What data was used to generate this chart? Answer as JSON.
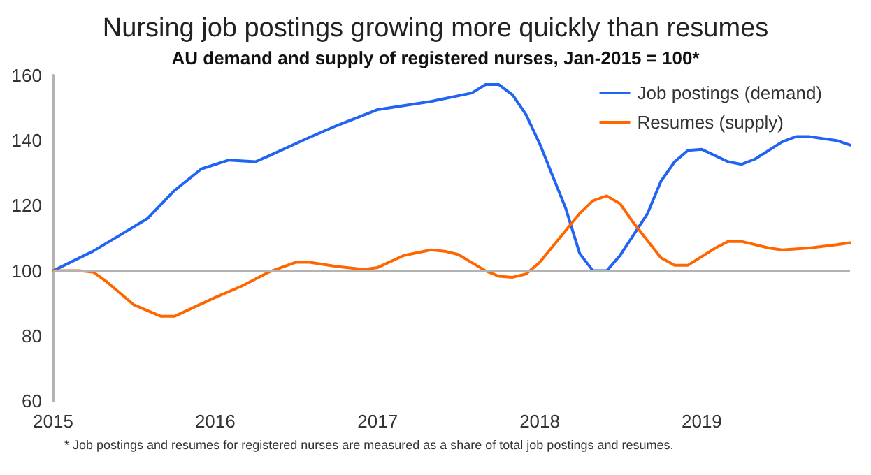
{
  "chart_data": {
    "type": "line",
    "title": "Nursing job postings growing more quickly than resumes",
    "subtitle": "AU demand and supply of registered nurses, Jan-2015 = 100*",
    "annotations": [
      "* Job postings and resumes for registered nurses are measured as a share of total job postings and resumes."
    ],
    "series": [
      {
        "name": "Job postings (demand)",
        "color": "#2164f3",
        "x": [
          "2015-01",
          "2015-04",
          "2015-06",
          "2015-08",
          "2015-10",
          "2015-12",
          "2016-02",
          "2016-04",
          "2016-05",
          "2016-08",
          "2016-10",
          "2017-01",
          "2017-05",
          "2017-08",
          "2017-09",
          "2017-10",
          "2017-11",
          "2017-12",
          "2018-01",
          "2018-03",
          "2018-04",
          "2018-05",
          "2018-06",
          "2018-07",
          "2018-09",
          "2018-10",
          "2018-11",
          "2018-12",
          "2019-01",
          "2019-03",
          "2019-04",
          "2019-05",
          "2019-07",
          "2019-08",
          "2019-09",
          "2019-11",
          "2019-12"
        ],
        "values": [
          100,
          106,
          111,
          116,
          124.6,
          131.3,
          134,
          133.5,
          135.3,
          141,
          144.6,
          149.5,
          152,
          154.6,
          157.2,
          157.2,
          154,
          148,
          139,
          119,
          105.3,
          100,
          100,
          104.7,
          117.6,
          127.5,
          133.5,
          137,
          137.3,
          133.5,
          132.7,
          134.3,
          139.6,
          141.2,
          141.2,
          140,
          138.6
        ]
      },
      {
        "name": "Resumes (supply)",
        "color": "#ff6600",
        "x": [
          "2015-01",
          "2015-03",
          "2015-04",
          "2015-05",
          "2015-07",
          "2015-09",
          "2015-10",
          "2016-01",
          "2016-03",
          "2016-05",
          "2016-07",
          "2016-08",
          "2016-10",
          "2016-12",
          "2017-01",
          "2017-03",
          "2017-05",
          "2017-06",
          "2017-07",
          "2017-09",
          "2017-10",
          "2017-11",
          "2017-12",
          "2018-01",
          "2018-04",
          "2018-05",
          "2018-06",
          "2018-07",
          "2018-08",
          "2018-10",
          "2018-11",
          "2018-12",
          "2019-02",
          "2019-03",
          "2019-04",
          "2019-06",
          "2019-07",
          "2019-09",
          "2019-11",
          "2019-12"
        ],
        "values": [
          100,
          100,
          99.6,
          96.7,
          89.6,
          86,
          86,
          91.8,
          95.3,
          99.6,
          102.6,
          102.6,
          101.3,
          100.4,
          101,
          104.7,
          106.4,
          106,
          105,
          100,
          98.3,
          98,
          99,
          102.6,
          117.6,
          121.5,
          123,
          120.6,
          114.6,
          104,
          101.7,
          101.7,
          107,
          109,
          109,
          107,
          106.4,
          107,
          108,
          108.6
        ]
      }
    ],
    "xlim": [
      "2015-01",
      "2019-12"
    ],
    "xticks": [
      {
        "value": "2015-01",
        "label": "2015"
      },
      {
        "value": "2016-01",
        "label": "2016"
      },
      {
        "value": "2017-01",
        "label": "2017"
      },
      {
        "value": "2018-01",
        "label": "2018"
      },
      {
        "value": "2019-01",
        "label": "2019"
      }
    ],
    "ylim": [
      60,
      160
    ],
    "yticks": [
      60,
      80,
      100,
      120,
      140,
      160
    ],
    "ref_lines": [
      {
        "axis": "y",
        "value": 100,
        "color": "#b3b3b3"
      }
    ],
    "grid": false,
    "legend": "top right",
    "marker": "none",
    "line_style": "solid"
  }
}
